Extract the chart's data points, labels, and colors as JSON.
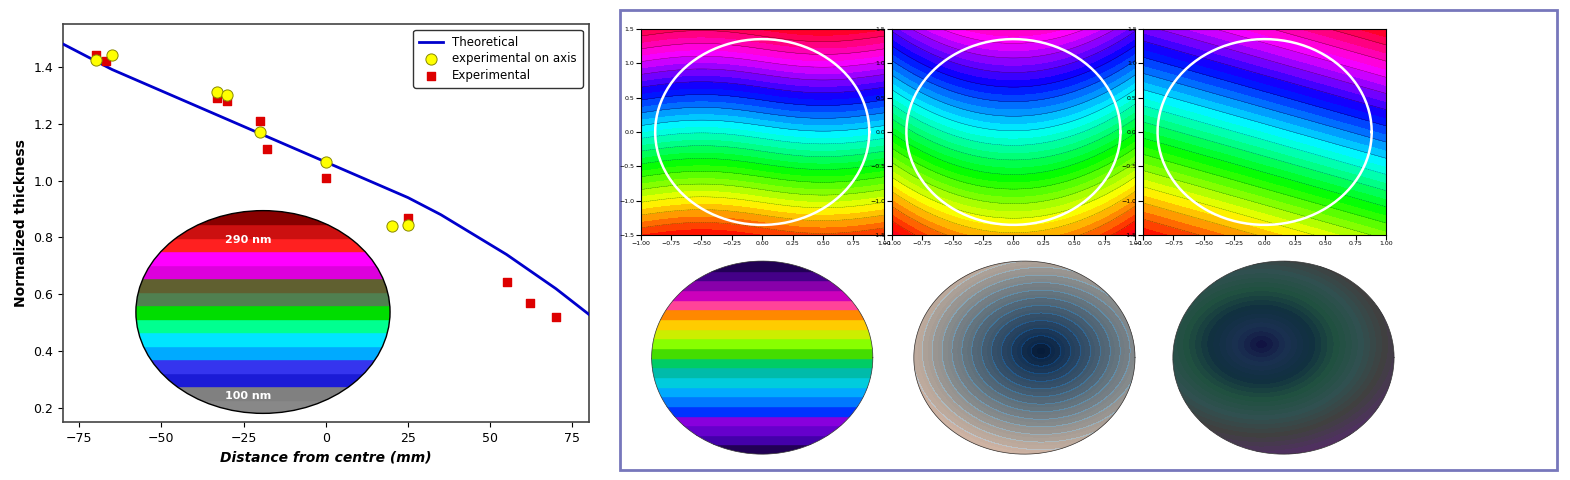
{
  "left_panel": {
    "xlabel": "Distance from centre (mm)",
    "ylabel": "Normalized thickness",
    "xlim": [
      -80,
      80
    ],
    "ylim": [
      0.15,
      1.55
    ],
    "yticks": [
      0.2,
      0.4,
      0.6,
      0.8,
      1.0,
      1.2,
      1.4
    ],
    "xticks": [
      -75,
      -50,
      -25,
      0,
      25,
      50,
      75
    ],
    "theo_x": [
      -80,
      -75,
      -70,
      -65,
      -60,
      -55,
      -50,
      -45,
      -40,
      -35,
      -30,
      -25,
      -20,
      -15,
      -10,
      -5,
      0,
      5,
      10,
      15,
      20,
      25,
      30,
      35,
      40,
      45,
      50,
      55,
      60,
      65,
      70,
      75,
      80
    ],
    "theo_y": [
      1.48,
      1.45,
      1.42,
      1.39,
      1.365,
      1.34,
      1.315,
      1.29,
      1.265,
      1.24,
      1.215,
      1.19,
      1.165,
      1.14,
      1.115,
      1.09,
      1.065,
      1.04,
      1.015,
      0.99,
      0.965,
      0.94,
      0.91,
      0.88,
      0.845,
      0.81,
      0.775,
      0.74,
      0.7,
      0.66,
      0.62,
      0.575,
      0.53
    ],
    "exp_on_axis_x": [
      -70,
      -65,
      -33,
      -30,
      -20,
      0,
      20,
      25
    ],
    "exp_on_axis_y": [
      1.425,
      1.44,
      1.31,
      1.3,
      1.17,
      1.065,
      0.84,
      0.845
    ],
    "experimental_x": [
      -70,
      -67,
      -33,
      -30,
      -20,
      -18,
      0,
      25,
      55,
      62,
      70
    ],
    "experimental_y": [
      1.44,
      1.42,
      1.29,
      1.28,
      1.21,
      1.11,
      1.01,
      0.87,
      0.645,
      0.57,
      0.52
    ],
    "legend_theoretical": "Theoretical",
    "legend_on_axis": "experimental on axis",
    "legend_exp": "Experimental",
    "line_color": "#0000CC",
    "dot_color": "#FFFF00",
    "square_color": "#DD0000",
    "inset_label_top": "290 nm",
    "inset_label_bottom": "100 nm",
    "inset_band_colors": [
      "#888888",
      "#808080",
      "#1B1BD6",
      "#3535EE",
      "#00AAFF",
      "#00E5FF",
      "#00FF90",
      "#00DD00",
      "#508050",
      "#606030",
      "#DD00DD",
      "#FF00FF",
      "#FF2020",
      "#CC1010",
      "#880000"
    ],
    "border_color": "#7777BB"
  },
  "right_panel": {
    "border_color": "#7777BB"
  }
}
